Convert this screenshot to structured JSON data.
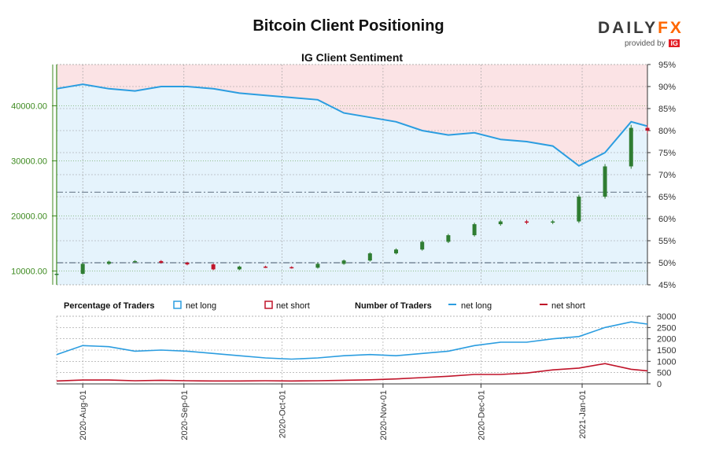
{
  "header": {
    "title": "Bitcoin Client Positioning",
    "logo_text": "DAILYFX",
    "logo_sub": "provided by",
    "logo_badge": "IG"
  },
  "colors": {
    "long_line": "#2b9de0",
    "short_line": "#c0142a",
    "long_fill": "#e5f3fc",
    "short_fill": "#fbe3e5",
    "candle_up": "#2f7d32",
    "candle_down": "#c0142a",
    "left_axis": "#3d8a1f",
    "grid": "#9a9a9a"
  },
  "legend": {
    "pct_heading": "Percentage of Traders",
    "pct_long": "net long",
    "pct_short": "net short",
    "num_heading": "Number of Traders",
    "num_long": "net long",
    "num_short": "net short"
  },
  "chart_data": [
    {
      "type": "candlestick",
      "title": "IG Client Sentiment",
      "left_axis": {
        "ylim": [
          7500,
          47500
        ],
        "ticks": [
          "10000.00",
          "20000.00",
          "30000.00",
          "40000.00"
        ],
        "tick_values": [
          10000,
          20000,
          30000,
          40000
        ]
      },
      "right_axis": {
        "ylim": [
          45,
          95
        ],
        "ticks": [
          "45%",
          "50%",
          "55%",
          "60%",
          "65%",
          "70%",
          "75%",
          "80%",
          "85%",
          "90%",
          "95%"
        ],
        "tick_values": [
          45,
          50,
          55,
          60,
          65,
          70,
          75,
          80,
          85,
          90,
          95
        ]
      },
      "reference_lines": [
        66,
        50
      ],
      "x_dates": [
        "2020-07-24",
        "2020-08-01",
        "2020-08-09",
        "2020-08-17",
        "2020-08-25",
        "2020-09-02",
        "2020-09-10",
        "2020-09-18",
        "2020-09-26",
        "2020-10-04",
        "2020-10-12",
        "2020-10-20",
        "2020-10-28",
        "2020-11-05",
        "2020-11-13",
        "2020-11-21",
        "2020-11-29",
        "2020-12-07",
        "2020-12-15",
        "2020-12-23",
        "2020-12-31",
        "2021-01-08",
        "2021-01-16",
        "2021-01-21"
      ],
      "price": [
        9500,
        11300,
        11700,
        11800,
        11500,
        11200,
        10300,
        10800,
        10700,
        10600,
        11300,
        11900,
        13200,
        13900,
        15300,
        16500,
        18500,
        19000,
        18800,
        19000,
        23500,
        29000,
        36000,
        35500
      ],
      "pct_net_long": [
        89.5,
        90.5,
        89.5,
        89.0,
        90.0,
        90.0,
        89.5,
        88.5,
        88.0,
        87.5,
        87.0,
        84.0,
        83.0,
        82.0,
        80.0,
        79.0,
        79.5,
        78.0,
        77.5,
        76.5,
        72.0,
        75.0,
        82.0,
        81.0
      ]
    },
    {
      "type": "line",
      "title": "Number of Traders",
      "ylim": [
        0,
        3000
      ],
      "ticks": [
        "0",
        "500",
        "1000",
        "1500",
        "2000",
        "2500",
        "3000"
      ],
      "tick_values": [
        0,
        500,
        1000,
        1500,
        2000,
        2500,
        3000
      ],
      "x_tick_labels": [
        "2020-Aug-01",
        "2020-Sep-01",
        "2020-Oct-01",
        "2020-Nov-01",
        "2020-Dec-01",
        "2021-Jan-01"
      ],
      "x_tick_dates": [
        "2020-08-01",
        "2020-09-01",
        "2020-10-01",
        "2020-11-01",
        "2020-12-01",
        "2021-01-01"
      ],
      "x_dates": [
        "2020-07-24",
        "2020-08-01",
        "2020-08-09",
        "2020-08-17",
        "2020-08-25",
        "2020-09-02",
        "2020-09-10",
        "2020-09-18",
        "2020-09-26",
        "2020-10-04",
        "2020-10-12",
        "2020-10-20",
        "2020-10-28",
        "2020-11-05",
        "2020-11-13",
        "2020-11-21",
        "2020-11-29",
        "2020-12-07",
        "2020-12-15",
        "2020-12-23",
        "2020-12-31",
        "2021-01-08",
        "2021-01-16",
        "2021-01-21"
      ],
      "series": [
        {
          "name": "net long",
          "values": [
            1300,
            1700,
            1650,
            1450,
            1500,
            1450,
            1350,
            1250,
            1150,
            1100,
            1150,
            1250,
            1300,
            1250,
            1350,
            1450,
            1700,
            1850,
            1850,
            2000,
            2100,
            2500,
            2750,
            2650
          ]
        },
        {
          "name": "net short",
          "values": [
            130,
            170,
            170,
            140,
            160,
            140,
            130,
            130,
            140,
            130,
            140,
            160,
            180,
            220,
            280,
            340,
            420,
            420,
            480,
            620,
            700,
            900,
            650,
            580
          ]
        }
      ]
    }
  ]
}
